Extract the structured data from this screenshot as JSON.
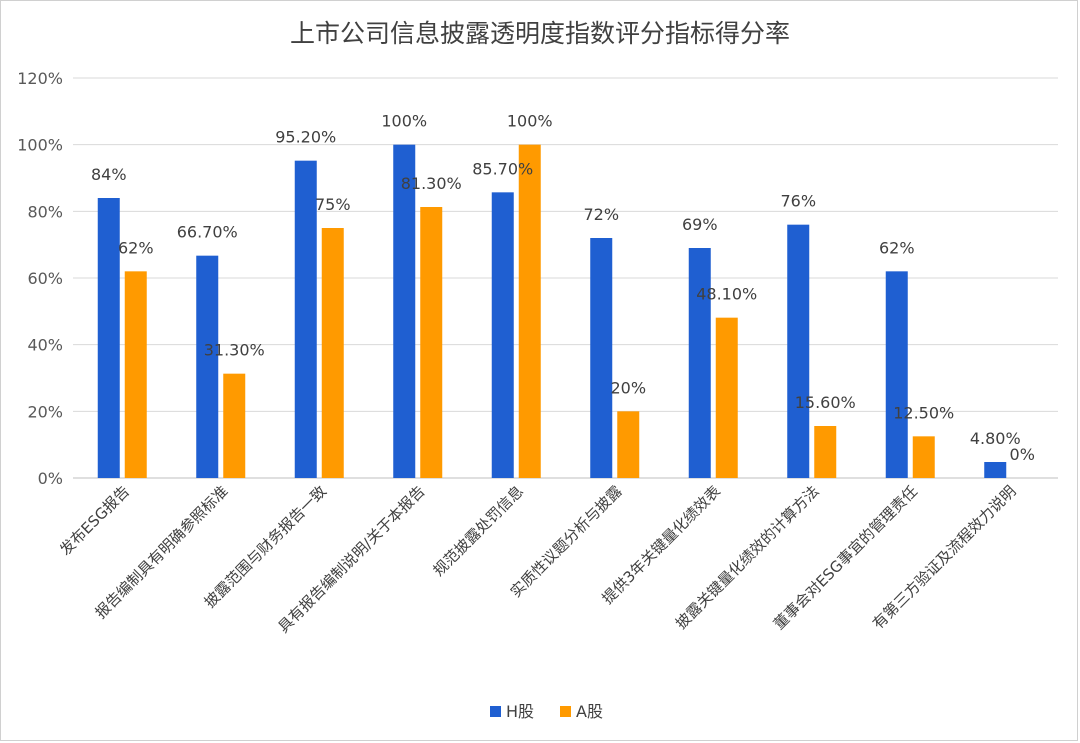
{
  "chart_data": {
    "type": "bar",
    "title": "上市公司信息披露透明度指数评分指标得分率",
    "categories": [
      "发布ESG报告",
      "报告编制具有明确参照标准",
      "披露范围与财务报告一致",
      "具有报告编制说明/关于本报告",
      "规范披露处罚信息",
      "实质性议题分析与披露",
      "提供3年关键量化绩效表",
      "披露关键量化绩效的计算方法",
      "董事会对ESG事宜的管理责任",
      "有第三方验证及流程效力说明"
    ],
    "series": [
      {
        "name": "H股",
        "color": "#1f5fd1",
        "values": [
          84,
          66.7,
          95.2,
          100,
          85.7,
          72,
          69,
          76,
          62,
          4.8
        ],
        "labels": [
          "84%",
          "66.70%",
          "95.20%",
          "100%",
          "85.70%",
          "72%",
          "69%",
          "76%",
          "62%",
          "4.80%"
        ]
      },
      {
        "name": "A股",
        "color": "#ff9a00",
        "values": [
          62,
          31.3,
          75,
          81.3,
          100,
          20,
          48.1,
          15.6,
          12.5,
          0
        ],
        "labels": [
          "62%",
          "31.30%",
          "75%",
          "81.30%",
          "100%",
          "20%",
          "48.10%",
          "15.60%",
          "12.50%",
          "0%"
        ]
      }
    ],
    "ylim": [
      0,
      120
    ],
    "yticks": [
      0,
      20,
      40,
      60,
      80,
      100,
      120
    ],
    "ytick_labels": [
      "0%",
      "20%",
      "40%",
      "60%",
      "80%",
      "100%",
      "120%"
    ],
    "grid": true,
    "legend": "bottom-center"
  }
}
